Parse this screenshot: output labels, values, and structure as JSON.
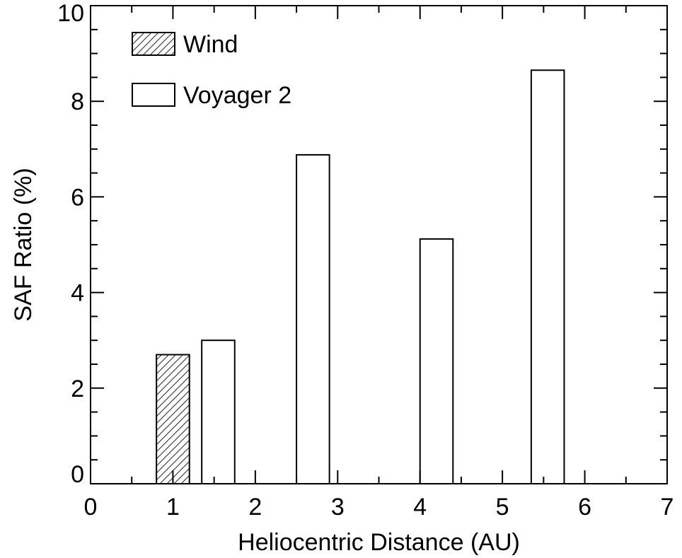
{
  "chart_data": {
    "type": "bar",
    "title": "",
    "xlabel": "Heliocentric Distance (AU)",
    "ylabel": "SAF Ratio (%)",
    "xlim": [
      0,
      7
    ],
    "ylim": [
      0,
      10
    ],
    "x_ticks": [
      "0",
      "1",
      "2",
      "3",
      "4",
      "5",
      "6",
      "7"
    ],
    "y_ticks": [
      "0",
      "2",
      "4",
      "6",
      "8",
      "10"
    ],
    "grid": false,
    "legend_position": "top-left",
    "series": [
      {
        "name": "Wind",
        "pattern": "hatched",
        "bars": [
          {
            "x_start": 0.8,
            "x_end": 1.2,
            "value": 2.7
          }
        ]
      },
      {
        "name": "Voyager 2",
        "pattern": "open",
        "bars": [
          {
            "x_start": 1.35,
            "x_end": 1.75,
            "value": 3.0
          },
          {
            "x_start": 2.5,
            "x_end": 2.9,
            "value": 6.88
          },
          {
            "x_start": 4.0,
            "x_end": 4.4,
            "value": 5.12
          },
          {
            "x_start": 5.35,
            "x_end": 5.75,
            "value": 8.65
          }
        ]
      }
    ]
  }
}
